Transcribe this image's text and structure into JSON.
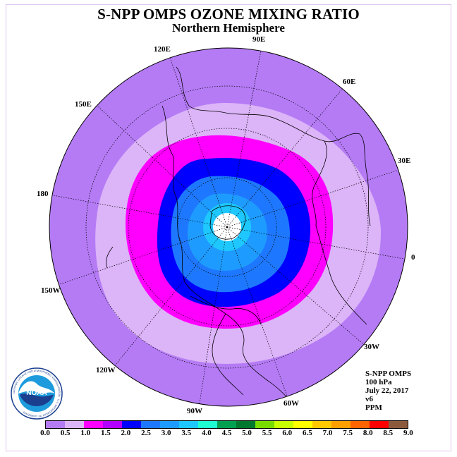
{
  "title": "S-NPP OMPS OZONE MIXING RATIO",
  "subtitle": "Northern Hemisphere",
  "longitude_labels": [
    {
      "text": "90E",
      "name": "lon-label-90e"
    },
    {
      "text": "60E",
      "name": "lon-label-60e"
    },
    {
      "text": "30E",
      "name": "lon-label-30e"
    },
    {
      "text": "0",
      "name": "lon-label-0"
    },
    {
      "text": "30W",
      "name": "lon-label-30w"
    },
    {
      "text": "60W",
      "name": "lon-label-60w"
    },
    {
      "text": "90W",
      "name": "lon-label-90w"
    },
    {
      "text": "120W",
      "name": "lon-label-120w"
    },
    {
      "text": "150W",
      "name": "lon-label-150w"
    },
    {
      "text": "180",
      "name": "lon-label-180"
    },
    {
      "text": "150E",
      "name": "lon-label-150e"
    },
    {
      "text": "120E",
      "name": "lon-label-120e"
    }
  ],
  "info": {
    "instrument": "S-NPP OMPS",
    "level": "100 hPa",
    "date": "July 22, 2017",
    "version": "v6",
    "units": "PPM"
  },
  "logo": {
    "text": "NOAA",
    "ring_text": "NATIONAL OCEANIC AND ATMOSPHERIC ADMINISTRATION · U.S. DEPARTMENT OF COMMERCE"
  },
  "colorbar": {
    "colors": [
      "#b57bf5",
      "#dcb4f8",
      "#ff00ff",
      "#b400ff",
      "#0000ff",
      "#1e78ff",
      "#1e9bff",
      "#1ec8ff",
      "#1effd2",
      "#00a050",
      "#00782d",
      "#78dc00",
      "#c8ff00",
      "#ffff00",
      "#ffc800",
      "#ffa000",
      "#ff6400",
      "#ff0000",
      "#8b5a3c"
    ],
    "ticks": [
      "0.0",
      "0.5",
      "1.0",
      "1.5",
      "2.0",
      "2.5",
      "3.0",
      "3.5",
      "4.0",
      "4.5",
      "5.0",
      "5.5",
      "6.0",
      "6.5",
      "7.0",
      "7.5",
      "8.0",
      "8.5",
      "9.0"
    ]
  },
  "map_colors": {
    "outer": "#b57bf5",
    "band_0_5": "#dcb4f8",
    "band_1_0": "#ff00ff",
    "band_1_5": "#0000ff",
    "band_2_0": "#1e78ff",
    "band_2_5": "#1e9bff",
    "pole_missing": "#ffffff"
  }
}
